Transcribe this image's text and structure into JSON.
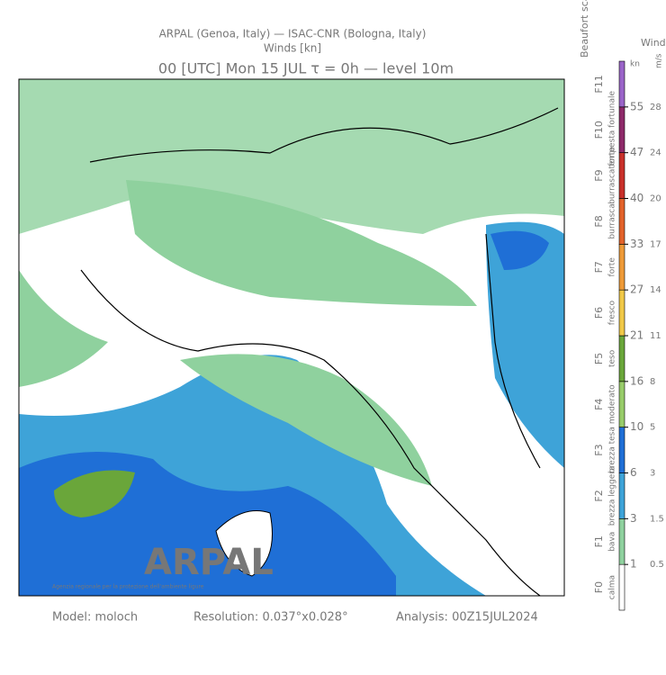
{
  "header": {
    "line1": "ARPAL (Genoa, Italy)  —  ISAC-CNR (Bologna, Italy)",
    "line2": "Winds [kn]",
    "line3": "00 [UTC] Mon 15 JUL  τ = 0h  —  level 10m"
  },
  "legend": {
    "beaufort_title": "Beaufort scale",
    "speed_title": "Wind speed",
    "kn_unit": "kn",
    "ms_unit": "m/s",
    "levels": [
      {
        "beaufort": "F0",
        "name": "calma",
        "color": "#ffffff",
        "kn": 1,
        "ms": 0.5
      },
      {
        "beaufort": "F1",
        "name": "bava",
        "color": "#8fd19e",
        "kn": 3,
        "ms": 1.5
      },
      {
        "beaufort": "F2",
        "name": "brezza leggera",
        "color": "#3ea3d8",
        "kn": 6,
        "ms": 3
      },
      {
        "beaufort": "F3",
        "name": "brezza tesa",
        "color": "#1f6fd6",
        "kn": 10,
        "ms": 5
      },
      {
        "beaufort": "F4",
        "name": "moderato",
        "color": "#98cc6a",
        "kn": 16,
        "ms": 8
      },
      {
        "beaufort": "F5",
        "name": "teso",
        "color": "#6aa63a",
        "kn": 21,
        "ms": 11
      },
      {
        "beaufort": "F6",
        "name": "fresco",
        "color": "#f0c848",
        "kn": 27,
        "ms": 14
      },
      {
        "beaufort": "F7",
        "name": "forte",
        "color": "#ee9a38",
        "kn": 33,
        "ms": 17
      },
      {
        "beaufort": "F8",
        "name": "burrasca",
        "color": "#e2622a",
        "kn": 40,
        "ms": 20
      },
      {
        "beaufort": "F9",
        "name": "burrasca forte",
        "color": "#c8302a",
        "kn": 47,
        "ms": 24
      },
      {
        "beaufort": "F10",
        "name": "tempesta fortunale",
        "color": "#8e2a6a",
        "kn": 55,
        "ms": 28
      },
      {
        "beaufort": "F11",
        "name": null,
        "color": "#9a64c8",
        "kn": null,
        "ms": null
      }
    ]
  },
  "logo": {
    "name": "ARPAL",
    "subtitle": "Agenzia regionale per la protezione dell'ambiente ligure"
  },
  "footer": {
    "model": "Model: moloch",
    "resolution": "Resolution: 0.037°x0.028°",
    "analysis": "Analysis: 00Z15JUL2024"
  }
}
